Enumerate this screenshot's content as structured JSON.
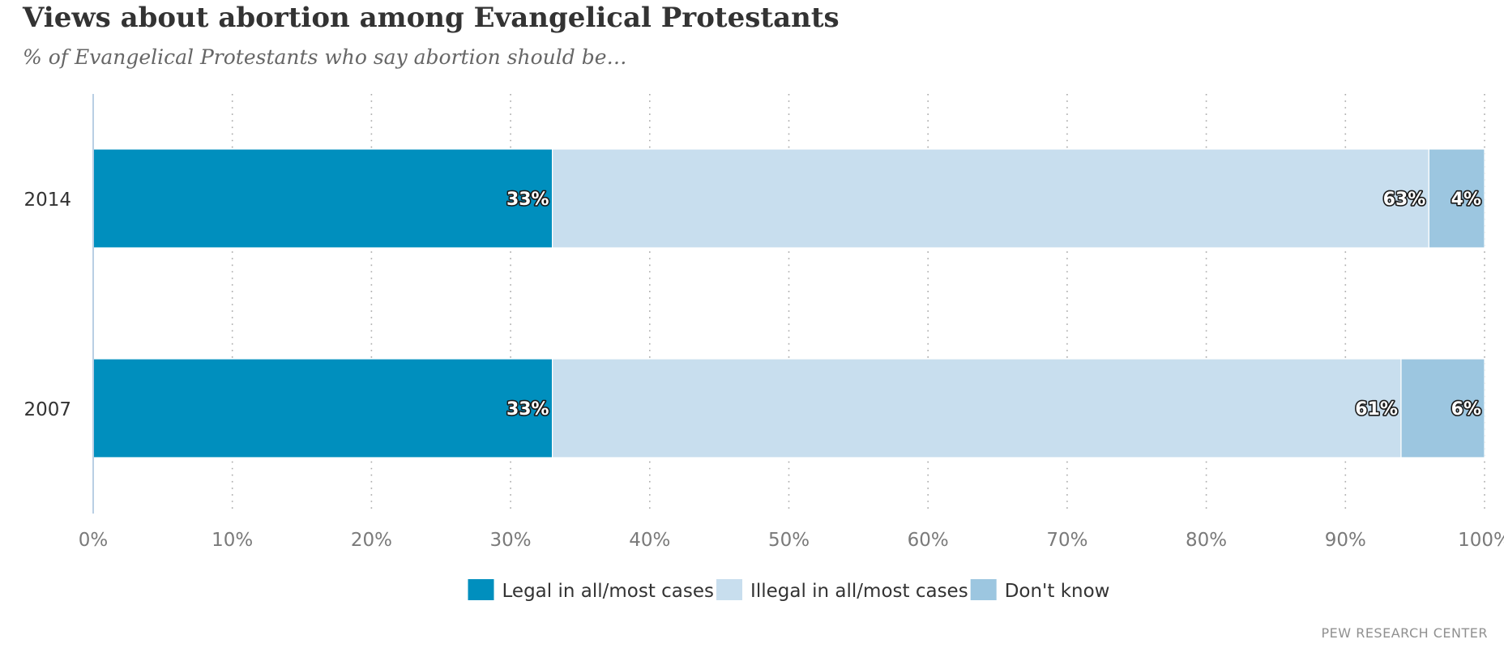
{
  "title": "Views about abortion among Evangelical Protestants",
  "subtitle": "% of Evangelical Protestants who say abortion should be…",
  "source": "PEW RESEARCH CENTER",
  "chart_data": {
    "type": "bar",
    "orientation": "horizontal",
    "stacked": true,
    "percent_stacked": true,
    "categories": [
      "2014",
      "2007"
    ],
    "series": [
      {
        "name": "Legal in all/most cases",
        "values": [
          33,
          33
        ],
        "labels": [
          "33%",
          "33%"
        ],
        "color": "#008fbe"
      },
      {
        "name": "Illegal in all/most cases",
        "values": [
          63,
          61
        ],
        "labels": [
          "63%",
          "61%"
        ],
        "color": "#c8deee"
      },
      {
        "name": "Don't know",
        "values": [
          4,
          6
        ],
        "labels": [
          "4%",
          "6%"
        ],
        "color": "#9cc6e0"
      }
    ],
    "xlim": [
      0,
      100
    ],
    "xticks": [
      "0%",
      "10%",
      "20%",
      "30%",
      "40%",
      "50%",
      "60%",
      "70%",
      "80%",
      "90%",
      "100%"
    ],
    "grid": true,
    "legend": "bottom"
  }
}
